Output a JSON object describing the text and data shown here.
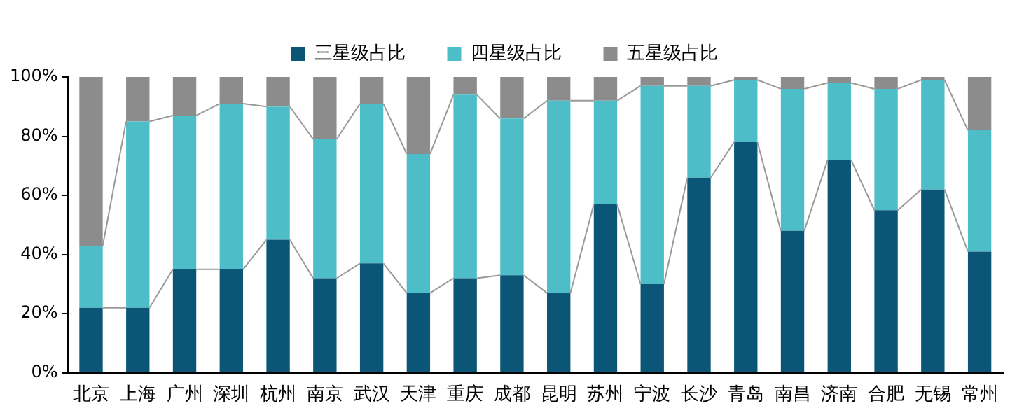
{
  "chart_data": {
    "type": "bar",
    "stacked": true,
    "legend": "top",
    "grid": false,
    "categories": [
      "北京",
      "上海",
      "广州",
      "深圳",
      "杭州",
      "南京",
      "武汉",
      "天津",
      "重庆",
      "成都",
      "昆明",
      "苏州",
      "宁波",
      "长沙",
      "青岛",
      "南昌",
      "济南",
      "合肥",
      "无锡",
      "常州"
    ],
    "series": [
      {
        "name": "三星级占比",
        "color": "#0b5676",
        "values": [
          22,
          22,
          35,
          35,
          45,
          32,
          37,
          27,
          32,
          33,
          27,
          57,
          30,
          66,
          78,
          48,
          72,
          55,
          62,
          41
        ]
      },
      {
        "name": "四星级占比",
        "color": "#4dbdc8",
        "values": [
          21,
          63,
          52,
          56,
          45,
          47,
          54,
          47,
          62,
          53,
          65,
          35,
          67,
          31,
          21,
          48,
          26,
          41,
          37,
          41
        ]
      },
      {
        "name": "五星级占比",
        "color": "#8c8c8c",
        "values": [
          57,
          15,
          13,
          9,
          10,
          21,
          9,
          26,
          6,
          14,
          8,
          8,
          3,
          3,
          1,
          4,
          2,
          4,
          1,
          18
        ]
      }
    ],
    "ylim": [
      0,
      100
    ],
    "yticks": [
      {
        "value": 0,
        "label": "0%"
      },
      {
        "value": 20,
        "label": "20%"
      },
      {
        "value": 40,
        "label": "40%"
      },
      {
        "value": 60,
        "label": "60%"
      },
      {
        "value": 80,
        "label": "80%"
      },
      {
        "value": 100,
        "label": "100%"
      }
    ]
  }
}
